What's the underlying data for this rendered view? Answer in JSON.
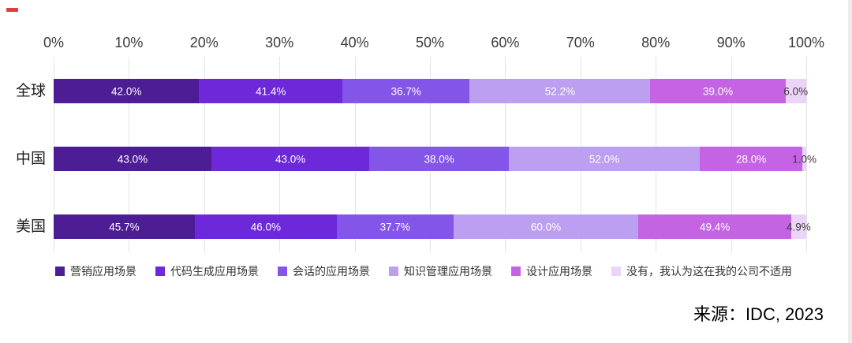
{
  "chart_data": {
    "type": "bar",
    "orientation": "horizontal",
    "stacked": true,
    "normalized_to_100": true,
    "categories": [
      "全球",
      "中国",
      "美国"
    ],
    "series": [
      {
        "name": "营销应用场景",
        "color": "#4c1d95",
        "label_color": "#ffffff",
        "values": [
          42.0,
          43.0,
          45.7
        ]
      },
      {
        "name": "代码生成应用场景",
        "color": "#6d28d9",
        "label_color": "#ffffff",
        "values": [
          41.4,
          43.0,
          46.0
        ]
      },
      {
        "name": "会话的应用场景",
        "color": "#8455e9",
        "label_color": "#ffffff",
        "values": [
          36.7,
          38.0,
          37.7
        ]
      },
      {
        "name": "知识管理应用场景",
        "color": "#bc9ff1",
        "label_color": "#ffffff",
        "values": [
          52.2,
          52.0,
          60.0
        ]
      },
      {
        "name": "设计应用场景",
        "color": "#c464e4",
        "label_color": "#ffffff",
        "values": [
          39.0,
          28.0,
          49.4
        ]
      },
      {
        "name": "没有，我认为这在我的公司不适用",
        "color": "#ecd4f8",
        "label_color": "#3a3a3a",
        "values": [
          6.0,
          1.0,
          4.9
        ]
      }
    ],
    "x_ticks": [
      "0%",
      "10%",
      "20%",
      "30%",
      "40%",
      "50%",
      "60%",
      "70%",
      "80%",
      "90%",
      "100%"
    ],
    "xlim": [
      0,
      100
    ],
    "grid": "vertical",
    "legend_position": "bottom",
    "value_label_suffix": "%"
  },
  "source": {
    "label": "来源：IDC, 2023"
  }
}
